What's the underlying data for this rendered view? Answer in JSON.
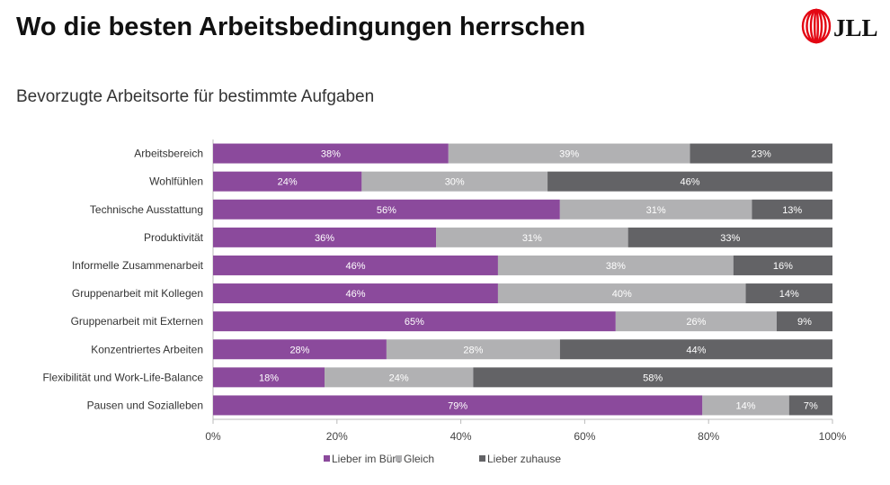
{
  "header": {
    "title": "Wo die besten Arbeitsbedingungen herrschen",
    "logo_text": "JLL"
  },
  "chart_data": {
    "type": "bar",
    "orientation": "horizontal",
    "stacked": true,
    "title": "Bevorzugte Arbeitsorte für bestimmte Aufgaben",
    "categories": [
      "Arbeitsbereich",
      "Wohlfühlen",
      "Technische Ausstattung",
      "Produktivität",
      "Informelle Zusammenarbeit",
      "Gruppenarbeit mit Kollegen",
      "Gruppenarbeit mit Externen",
      "Konzentriertes Arbeiten",
      "Flexibilität und Work-Life-Balance",
      "Pausen und Sozialleben"
    ],
    "series": [
      {
        "name": "Lieber im Büro",
        "color": "#8b4a9c",
        "values": [
          38,
          24,
          56,
          36,
          46,
          46,
          65,
          28,
          18,
          79
        ]
      },
      {
        "name": "Gleich",
        "color": "#b1b1b3",
        "values": [
          39,
          30,
          31,
          31,
          38,
          40,
          26,
          28,
          24,
          14
        ]
      },
      {
        "name": "Lieber zuhause",
        "color": "#636366",
        "values": [
          23,
          46,
          13,
          33,
          16,
          14,
          9,
          44,
          58,
          7
        ]
      }
    ],
    "xlim": [
      0,
      100
    ],
    "xticks": [
      "0%",
      "20%",
      "40%",
      "60%",
      "80%",
      "100%"
    ],
    "grid": false,
    "legend": "bottom"
  }
}
